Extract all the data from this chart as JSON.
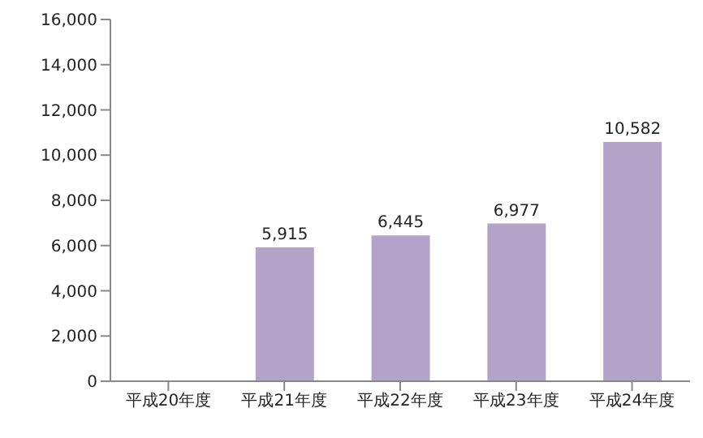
{
  "chart_data": {
    "type": "bar",
    "categories": [
      "平成20年度",
      "平成21年度",
      "平成22年度",
      "平成23年度",
      "平成24年度"
    ],
    "values": [
      null,
      5915,
      6445,
      6977,
      10582
    ],
    "value_labels": [
      null,
      "5,915",
      "6,445",
      "6,977",
      "10,582"
    ],
    "color": "#b4a3c9",
    "ylim": [
      0,
      16000
    ],
    "yticks": [
      {
        "value": 0,
        "label": "0"
      },
      {
        "value": 2000,
        "label": "2,000"
      },
      {
        "value": 4000,
        "label": "4,000"
      },
      {
        "value": 6000,
        "label": "6,000"
      },
      {
        "value": 8000,
        "label": "8,000"
      },
      {
        "value": 10000,
        "label": "10,000"
      },
      {
        "value": 12000,
        "label": "12,000"
      },
      {
        "value": 14000,
        "label": "14,000"
      },
      {
        "value": 16000,
        "label": "16,000"
      }
    ],
    "grid": false
  }
}
